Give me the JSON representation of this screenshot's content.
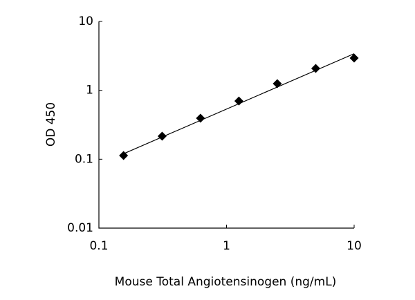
{
  "chart_data": {
    "type": "scatter",
    "x_label": "Mouse Total Angiotensinogen (ng/mL)",
    "y_label": "OD 450",
    "x": [
      0.156,
      0.313,
      0.625,
      1.25,
      2.5,
      5,
      10
    ],
    "series": [
      {
        "color": "#000000",
        "values": [
          0.113,
          0.216,
          0.394,
          0.7,
          1.25,
          2.08,
          2.94
        ]
      }
    ],
    "trendline": {
      "color": "#000000",
      "x": [
        0.156,
        10
      ],
      "values": [
        0.12,
        3.4
      ]
    },
    "xscale": "log",
    "yscale": "log",
    "xlim": [
      0.1,
      10
    ],
    "ylim": [
      0.01,
      10
    ],
    "xticks": [
      0.1,
      1,
      10
    ],
    "yticks": [
      0.01,
      0.1,
      1,
      10
    ],
    "grid": false
  }
}
